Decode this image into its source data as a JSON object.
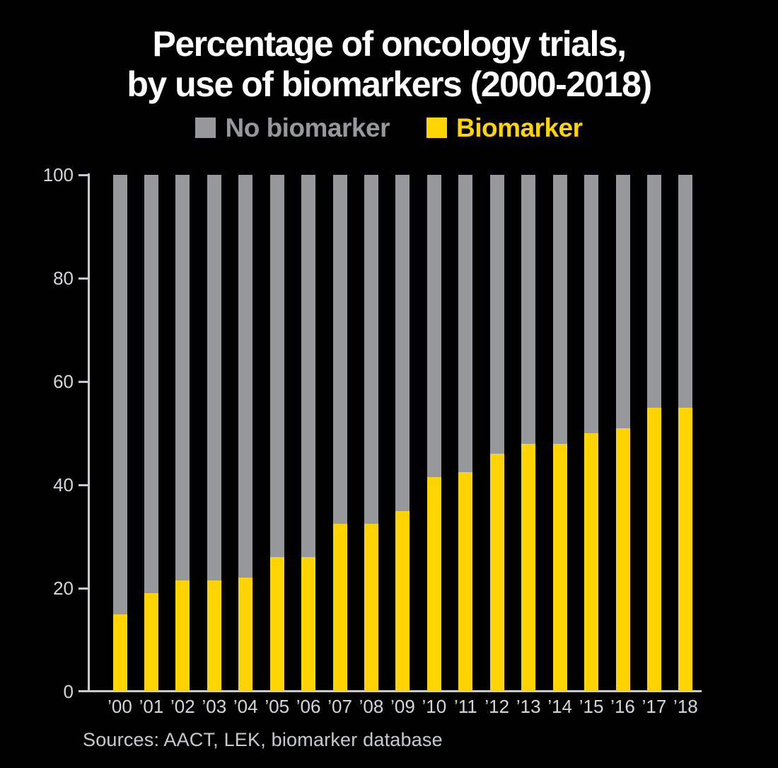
{
  "title": {
    "line1": "Percentage of oncology trials,",
    "line2": "by use of biomarkers (2000-2018)"
  },
  "legend": [
    {
      "label": "No biomarker",
      "color": "#97989B"
    },
    {
      "label": "Biomarker",
      "color": "#FFD400"
    }
  ],
  "sources": "Sources: AACT, LEK, biomarker database",
  "chart_data": {
    "type": "bar",
    "stacked": true,
    "title": "Percentage of oncology trials, by use of biomarkers (2000-2018)",
    "categories": [
      "’00",
      "’01",
      "’02",
      "’03",
      "’04",
      "’05",
      "’06",
      "’07",
      "’08",
      "’09",
      "’10",
      "’11",
      "’12",
      "’13",
      "’14",
      "’15",
      "’16",
      "’17",
      "’18"
    ],
    "series": [
      {
        "name": "Biomarker",
        "color": "#FFD400",
        "values": [
          15,
          19,
          21.5,
          21.5,
          22,
          26,
          26,
          32.5,
          32.5,
          35,
          41.5,
          42.5,
          46,
          48,
          48,
          50,
          51,
          55,
          55
        ]
      },
      {
        "name": "No biomarker",
        "color": "#97989B",
        "values": [
          85,
          81,
          78.5,
          78.5,
          78,
          74,
          74,
          67.5,
          67.5,
          65,
          58.5,
          57.5,
          54,
          52,
          52,
          50,
          49,
          45,
          45
        ]
      }
    ],
    "xlabel": "",
    "ylabel": "",
    "ylim": [
      0,
      100
    ],
    "yticks": [
      0,
      20,
      40,
      60,
      80,
      100
    ],
    "grid": false,
    "legend_position": "top",
    "background": "#000000"
  }
}
